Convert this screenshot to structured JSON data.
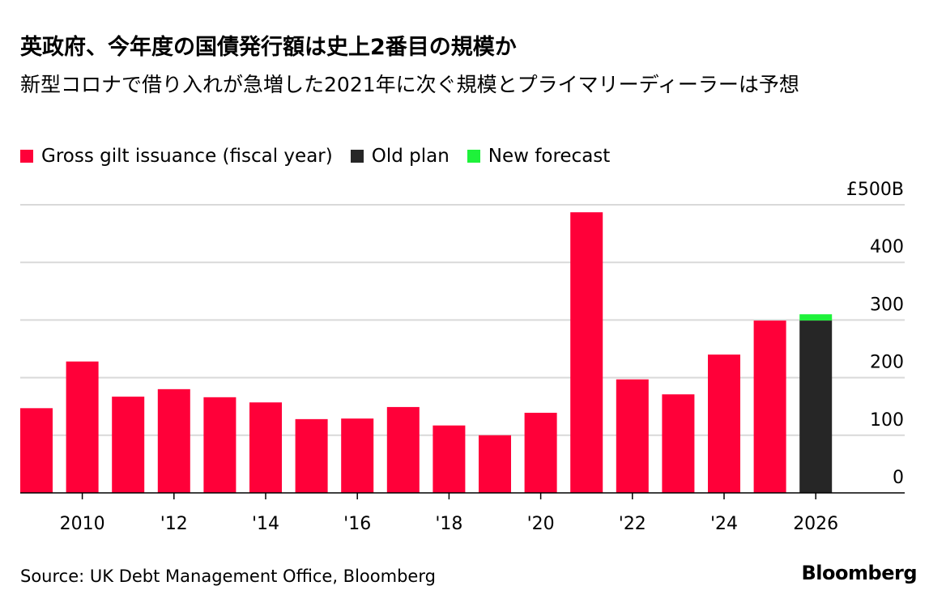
{
  "title": "英政府、今年度の国債発行額は史上2番目の規模か",
  "subtitle": "新型コロナで借り入れが急増した2021年に次ぐ規模とプライマリーディーラーは予想",
  "source": "Source: UK Debt Management Office, Bloomberg",
  "logo": "Bloomberg",
  "colors": {
    "issuance": "#ff0039",
    "old_plan": "#262626",
    "new_forecast": "#1ef23a",
    "grid": "#d9d9d9"
  },
  "chart_data": {
    "type": "bar",
    "legend": [
      "Gross gilt issuance (fiscal year)",
      "Old plan",
      "New forecast"
    ],
    "legend_placement": "top-left",
    "categories": [
      2009,
      2010,
      2011,
      2012,
      2013,
      2014,
      2015,
      2016,
      2017,
      2018,
      2019,
      2020,
      2021,
      2022,
      2023,
      2024,
      2025,
      2026
    ],
    "series": [
      {
        "name": "Gross gilt issuance (fiscal year)",
        "values": [
          147,
          228,
          167,
          180,
          166,
          157,
          128,
          129,
          149,
          117,
          100,
          139,
          487,
          197,
          171,
          240,
          299,
          null
        ]
      },
      {
        "name": "Old plan",
        "values": [
          null,
          null,
          null,
          null,
          null,
          null,
          null,
          null,
          null,
          null,
          null,
          null,
          null,
          null,
          null,
          null,
          null,
          299
        ]
      },
      {
        "name": "New forecast",
        "values": [
          null,
          null,
          null,
          null,
          null,
          null,
          null,
          null,
          null,
          null,
          null,
          null,
          null,
          null,
          null,
          null,
          null,
          310
        ]
      }
    ],
    "x_tick_labels": [
      {
        "x": 2010,
        "label": "2010"
      },
      {
        "x": 2012,
        "label": "'12"
      },
      {
        "x": 2014,
        "label": "'14"
      },
      {
        "x": 2016,
        "label": "'16"
      },
      {
        "x": 2018,
        "label": "'18"
      },
      {
        "x": 2020,
        "label": "'20"
      },
      {
        "x": 2022,
        "label": "'22"
      },
      {
        "x": 2024,
        "label": "'24"
      },
      {
        "x": 2026,
        "label": "2026"
      }
    ],
    "y_ticks": [
      {
        "v": 0,
        "label": "0"
      },
      {
        "v": 100,
        "label": "100"
      },
      {
        "v": 200,
        "label": "200"
      },
      {
        "v": 300,
        "label": "300"
      },
      {
        "v": 400,
        "label": "400"
      },
      {
        "v": 500,
        "label": "£500B"
      }
    ],
    "ylim": [
      0,
      500
    ],
    "grid": true,
    "y_axis_side": "right"
  }
}
